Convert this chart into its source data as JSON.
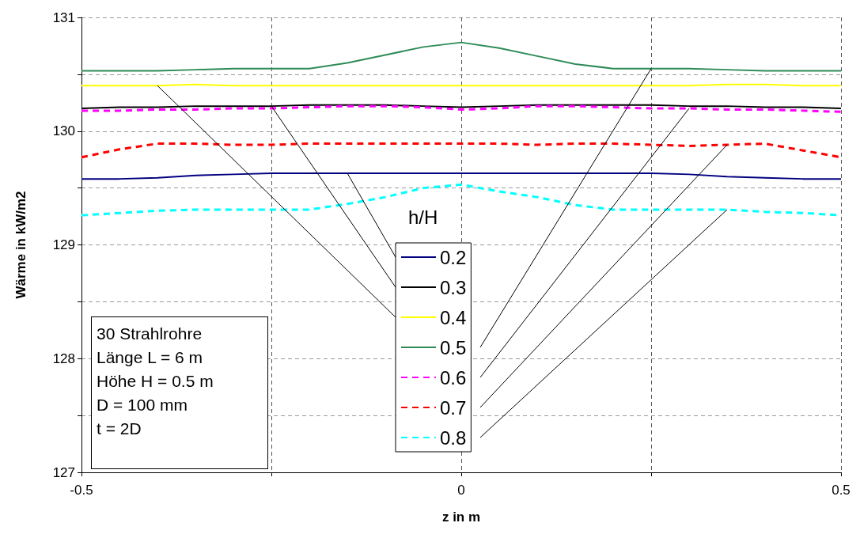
{
  "chart_data": {
    "type": "line",
    "xlabel": "z in m",
    "ylabel": "Wärme in kW/m2",
    "legend_title": "h/H",
    "legend": "bottom",
    "grid": true,
    "marker": "none",
    "x": [
      -0.5,
      -0.45,
      -0.4,
      -0.35,
      -0.3,
      -0.25,
      -0.2,
      -0.15,
      -0.1,
      -0.05,
      0,
      0.05,
      0.1,
      0.15,
      0.2,
      0.25,
      0.3,
      0.35,
      0.4,
      0.45,
      0.5
    ],
    "xlim": [
      -0.5,
      0.5
    ],
    "xticks": [
      -0.5,
      {
        "value": -0.25,
        "label": null
      },
      0,
      {
        "value": 0.25,
        "label": null
      },
      0.5
    ],
    "ylim": [
      127,
      131
    ],
    "yticks": [
      127,
      {
        "value": 127.5,
        "label": null
      },
      128,
      {
        "value": 128.5,
        "label": null
      },
      129,
      {
        "value": 129.5,
        "label": null
      },
      130,
      {
        "value": 130.5,
        "label": null
      },
      131
    ],
    "series": [
      {
        "name": "0.2",
        "color": "#000080",
        "line_style": "solid",
        "values": [
          129.58,
          129.58,
          129.59,
          129.61,
          129.62,
          129.63,
          129.63,
          129.63,
          129.63,
          129.63,
          129.63,
          129.63,
          129.63,
          129.63,
          129.63,
          129.63,
          129.62,
          129.6,
          129.59,
          129.58,
          129.58
        ]
      },
      {
        "name": "0.3",
        "color": "#000000",
        "line_style": "solid",
        "values": [
          130.2,
          130.21,
          130.21,
          130.22,
          130.22,
          130.22,
          130.23,
          130.23,
          130.23,
          130.22,
          130.21,
          130.22,
          130.23,
          130.23,
          130.23,
          130.23,
          130.22,
          130.22,
          130.21,
          130.21,
          130.2
        ]
      },
      {
        "name": "0.4",
        "color": "#ffff00",
        "line_style": "solid",
        "values": [
          130.4,
          130.4,
          130.4,
          130.41,
          130.4,
          130.4,
          130.4,
          130.4,
          130.4,
          130.4,
          130.4,
          130.4,
          130.4,
          130.4,
          130.4,
          130.4,
          130.4,
          130.41,
          130.41,
          130.4,
          130.4
        ]
      },
      {
        "name": "0.5",
        "color": "#2e8b57",
        "line_style": "solid",
        "values": [
          130.53,
          130.53,
          130.53,
          130.54,
          130.55,
          130.55,
          130.55,
          130.6,
          130.67,
          130.74,
          130.78,
          130.73,
          130.66,
          130.59,
          130.55,
          130.55,
          130.55,
          130.54,
          130.53,
          130.53,
          130.53
        ]
      },
      {
        "name": "0.6",
        "color": "#ff00ff",
        "line_style": "dashed",
        "values": [
          130.18,
          130.18,
          130.19,
          130.19,
          130.2,
          130.2,
          130.21,
          130.22,
          130.22,
          130.21,
          130.19,
          130.2,
          130.22,
          130.22,
          130.21,
          130.2,
          130.2,
          130.19,
          130.19,
          130.18,
          130.17
        ]
      },
      {
        "name": "0.7",
        "color": "#ff0000",
        "line_style": "dashed",
        "values": [
          129.77,
          129.84,
          129.89,
          129.89,
          129.88,
          129.88,
          129.89,
          129.89,
          129.89,
          129.89,
          129.89,
          129.89,
          129.88,
          129.89,
          129.89,
          129.88,
          129.87,
          129.88,
          129.89,
          129.83,
          129.77
        ]
      },
      {
        "name": "0.8",
        "color": "#00ffff",
        "line_style": "dashed",
        "values": [
          129.26,
          129.28,
          129.3,
          129.31,
          129.31,
          129.31,
          129.31,
          129.36,
          129.42,
          129.5,
          129.53,
          129.47,
          129.42,
          129.35,
          129.31,
          129.31,
          129.31,
          129.31,
          129.29,
          129.28,
          129.26
        ]
      }
    ],
    "annotations": [
      "30 Strahlrohre",
      "Länge L = 6 m",
      "Höhe H = 0.5 m",
      "D = 100 mm",
      "t = 2D"
    ]
  }
}
